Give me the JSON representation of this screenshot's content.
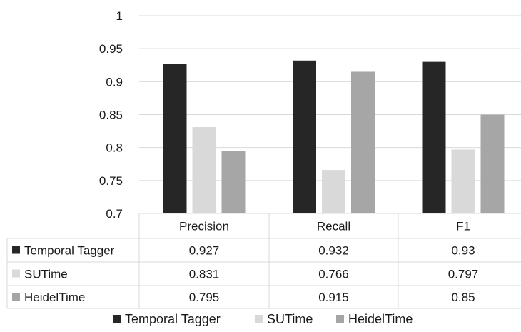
{
  "chart_data": {
    "type": "bar",
    "categories": [
      "Precision",
      "Recall",
      "F1"
    ],
    "series": [
      {
        "name": "Temporal Tagger",
        "values": [
          0.927,
          0.932,
          0.93
        ],
        "color": "#262626"
      },
      {
        "name": "SUTime",
        "values": [
          0.831,
          0.766,
          0.797
        ],
        "color": "#d9d9d9"
      },
      {
        "name": "HeidelTime",
        "values": [
          0.795,
          0.915,
          0.85
        ],
        "color": "#a6a6a6"
      }
    ],
    "ylim": [
      0.7,
      1
    ],
    "yticks": [
      "0.7",
      "0.75",
      "0.8",
      "0.85",
      "0.9",
      "0.95",
      "1"
    ],
    "table": {
      "rows": [
        {
          "label": "Temporal Tagger",
          "cells": [
            "0.927",
            "0.932",
            "0.93"
          ]
        },
        {
          "label": "SUTime",
          "cells": [
            "0.831",
            "0.766",
            "0.797"
          ]
        },
        {
          "label": "HeidelTime",
          "cells": [
            "0.795",
            "0.915",
            "0.85"
          ]
        }
      ]
    },
    "gridlines": true,
    "legend_position": "bottom"
  }
}
